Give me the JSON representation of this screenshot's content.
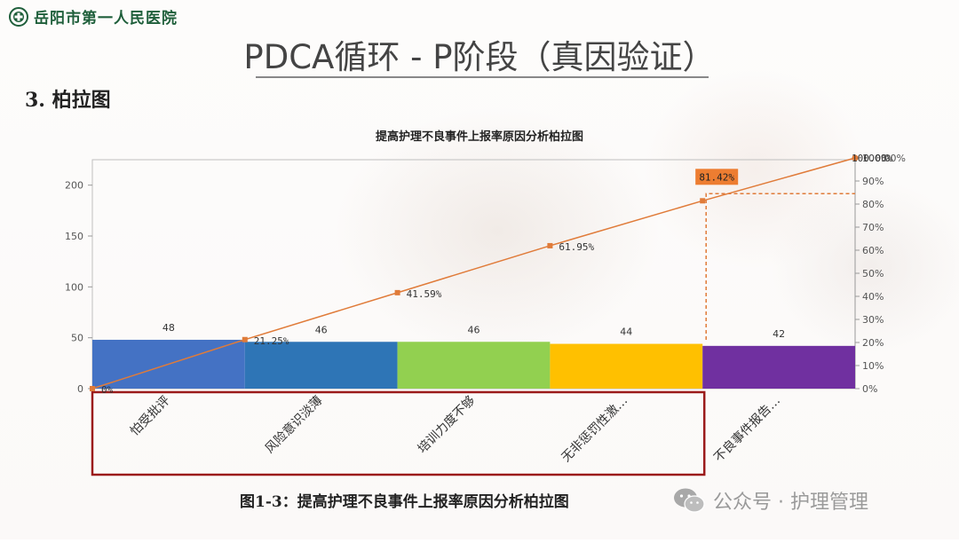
{
  "header": {
    "hospital_name": "岳阳市第一人民医院",
    "page_title": "PDCA循环 - P阶段（真因验证）",
    "section_heading": "3. 柏拉图"
  },
  "caption": "图1-3：提高护理不良事件上报率原因分析柏拉图",
  "watermark": {
    "text": "公众号 · 护理管理",
    "icon": "wechat-icon"
  },
  "colors": {
    "bar1": "#4472C4",
    "bar2": "#2E75B6",
    "bar3": "#92D050",
    "bar4": "#FFC000",
    "bar5": "#7030A0",
    "line": "#E07B39",
    "highlight_box": "#9B1B1B",
    "label_badge": "#ED7D31",
    "logo_green": "#1f5f3b"
  },
  "chart_data": {
    "type": "bar",
    "title": "提高护理不良事件上报率原因分析柏拉图",
    "categories": [
      "怕受批评",
      "风险意识淡薄",
      "培训力度不够",
      "无非惩罚性激…",
      "不良事件报告…"
    ],
    "values": [
      48,
      46,
      46,
      44,
      42
    ],
    "value_labels": [
      "48",
      "46",
      "46",
      "44",
      "42"
    ],
    "ylim": [
      0,
      225
    ],
    "y_ticks": [
      "0",
      "50",
      "100",
      "150",
      "200"
    ],
    "y2_ticks": [
      "0%",
      "10%",
      "20%",
      "30%",
      "40%",
      "50%",
      "60%",
      "70%",
      "80%",
      "90%",
      "100%"
    ],
    "cumulative": {
      "values": [
        0,
        21.25,
        41.59,
        61.95,
        81.42,
        100
      ],
      "labels": [
        "0%",
        "21.25%",
        "41.59%",
        "61.95%",
        "81.42%",
        "100.00%"
      ]
    },
    "y2_right_top_label": "100.00%",
    "cutoff_percent": 81.42,
    "highlight_categories": 4
  }
}
